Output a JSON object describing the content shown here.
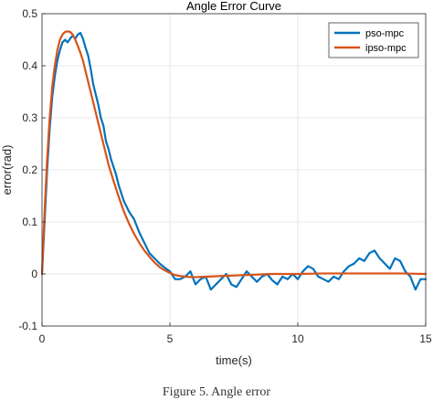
{
  "chart_data": {
    "type": "line",
    "title": "Angle Error Curve",
    "xlabel": "time(s)",
    "ylabel": "error(rad)",
    "xlim": [
      0,
      15
    ],
    "ylim": [
      -0.1,
      0.5
    ],
    "xticks": [
      0,
      5,
      10,
      15
    ],
    "yticks": [
      -0.1,
      0,
      0.1,
      0.2,
      0.3,
      0.4,
      0.5
    ],
    "grid": true,
    "legend_position": "top-right",
    "series": [
      {
        "name": "pso-mpc",
        "color": "#0072BD",
        "x": [
          0,
          0.1,
          0.2,
          0.3,
          0.4,
          0.5,
          0.6,
          0.7,
          0.8,
          0.9,
          1.0,
          1.1,
          1.2,
          1.3,
          1.4,
          1.5,
          1.6,
          1.7,
          1.8,
          1.9,
          2.0,
          2.1,
          2.2,
          2.3,
          2.4,
          2.5,
          2.6,
          2.7,
          2.8,
          2.9,
          3.0,
          3.2,
          3.4,
          3.6,
          3.8,
          4.0,
          4.2,
          4.4,
          4.6,
          4.8,
          5.0,
          5.2,
          5.4,
          5.6,
          5.8,
          6.0,
          6.2,
          6.4,
          6.6,
          6.8,
          7.0,
          7.2,
          7.4,
          7.6,
          7.8,
          8.0,
          8.2,
          8.4,
          8.6,
          8.8,
          9.0,
          9.2,
          9.4,
          9.6,
          9.8,
          10.0,
          10.2,
          10.4,
          10.6,
          10.8,
          11.0,
          11.2,
          11.4,
          11.6,
          11.8,
          12.0,
          12.2,
          12.4,
          12.6,
          12.8,
          13.0,
          13.2,
          13.4,
          13.6,
          13.8,
          14.0,
          14.2,
          14.4,
          14.6,
          14.8,
          15.0
        ],
        "y": [
          0,
          0.1,
          0.2,
          0.28,
          0.34,
          0.38,
          0.41,
          0.43,
          0.445,
          0.45,
          0.445,
          0.452,
          0.458,
          0.452,
          0.46,
          0.463,
          0.452,
          0.435,
          0.42,
          0.395,
          0.365,
          0.345,
          0.325,
          0.3,
          0.285,
          0.255,
          0.24,
          0.22,
          0.205,
          0.19,
          0.17,
          0.14,
          0.12,
          0.105,
          0.08,
          0.06,
          0.04,
          0.03,
          0.02,
          0.012,
          0.005,
          -0.01,
          -0.01,
          -0.005,
          0.005,
          -0.02,
          -0.01,
          -0.005,
          -0.03,
          -0.02,
          -0.01,
          0.0,
          -0.02,
          -0.025,
          -0.01,
          0.005,
          -0.005,
          -0.015,
          -0.005,
          0.0,
          -0.012,
          -0.02,
          -0.005,
          -0.01,
          0.0,
          -0.01,
          0.005,
          0.015,
          0.01,
          -0.005,
          -0.01,
          -0.015,
          -0.005,
          -0.01,
          0.005,
          0.015,
          0.02,
          0.03,
          0.025,
          0.04,
          0.045,
          0.03,
          0.02,
          0.01,
          0.03,
          0.025,
          0.005,
          -0.005,
          -0.03,
          -0.01,
          -0.01
        ]
      },
      {
        "name": "ipso-mpc",
        "color": "#D95319",
        "x": [
          0,
          0.1,
          0.2,
          0.3,
          0.4,
          0.5,
          0.6,
          0.7,
          0.8,
          0.9,
          1.0,
          1.1,
          1.2,
          1.3,
          1.4,
          1.5,
          1.6,
          1.7,
          1.8,
          1.9,
          2.0,
          2.2,
          2.4,
          2.6,
          2.8,
          3.0,
          3.2,
          3.4,
          3.6,
          3.8,
          4.0,
          4.2,
          4.4,
          4.6,
          4.8,
          5.0,
          5.2,
          5.4,
          5.6,
          5.8,
          6.0,
          6.5,
          7.0,
          8.0,
          9.0,
          10.0,
          11.0,
          12.0,
          13.0,
          14.0,
          15.0
        ],
        "y": [
          0,
          0.12,
          0.22,
          0.3,
          0.36,
          0.4,
          0.43,
          0.45,
          0.46,
          0.465,
          0.466,
          0.465,
          0.46,
          0.45,
          0.438,
          0.425,
          0.41,
          0.39,
          0.37,
          0.35,
          0.33,
          0.29,
          0.25,
          0.21,
          0.178,
          0.148,
          0.12,
          0.097,
          0.077,
          0.06,
          0.045,
          0.033,
          0.022,
          0.013,
          0.007,
          0.002,
          -0.002,
          -0.004,
          -0.005,
          -0.006,
          -0.006,
          -0.005,
          -0.004,
          -0.002,
          0.0,
          0.0,
          0.001,
          0.001,
          0.001,
          0.001,
          0.0
        ]
      }
    ]
  },
  "caption": "Figure 5.    Angle error"
}
